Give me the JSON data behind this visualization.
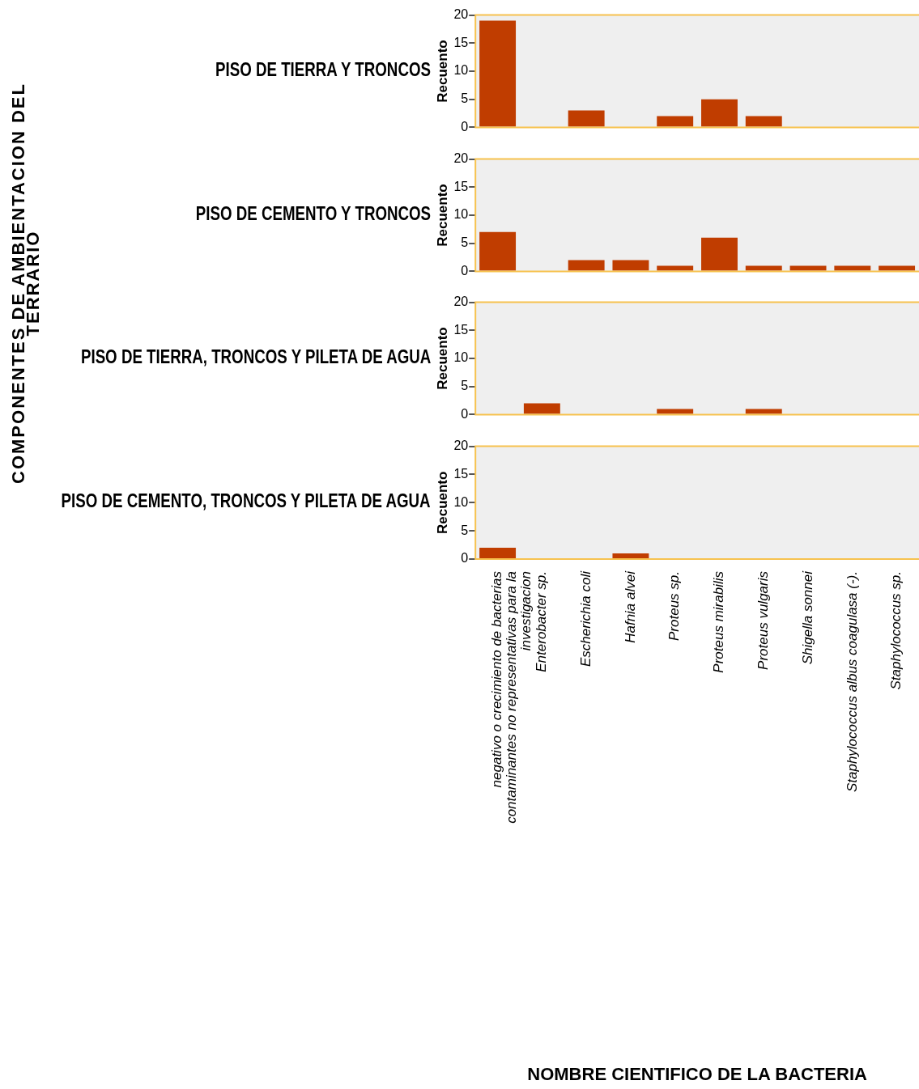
{
  "chart_data": [
    {
      "type": "bar",
      "title": "PISO DE TIERRA Y TRONCOS",
      "ylabel": "Recuento",
      "annotations": [
        "COMPONENTES DE AMBIENTACION DEL TERRARIO"
      ],
      "categories": [
        null,
        null,
        null,
        null,
        null,
        null,
        null,
        null,
        null,
        null
      ],
      "values": [
        19,
        null,
        3,
        null,
        2,
        5,
        2,
        null,
        null,
        null
      ],
      "color": "#c03d00",
      "ylim": [
        0,
        20
      ],
      "yticks": [
        0,
        5,
        10,
        15,
        20
      ],
      "grid": false,
      "legend": false,
      "tick_labels": "y"
    },
    {
      "type": "bar",
      "title": "PISO DE CEMENTO Y TRONCOS",
      "ylabel": "Recuento",
      "categories": [
        null,
        null,
        null,
        null,
        null,
        null,
        null,
        null,
        null,
        null
      ],
      "values": [
        7,
        0,
        2,
        2,
        1,
        6,
        1,
        1,
        1,
        1
      ],
      "color": "#c03d00",
      "ylim": [
        0,
        20
      ],
      "yticks": [
        0,
        5,
        10,
        15,
        20
      ],
      "grid": false,
      "legend": false,
      "tick_labels": "y"
    },
    {
      "type": "bar",
      "title": "PISO DE TIERRA, TRONCOS Y PILETA DE AGUA",
      "ylabel": "Recuento",
      "categories": [
        null,
        null,
        null,
        null,
        null,
        null,
        null,
        null,
        null,
        null
      ],
      "values": [
        0,
        2,
        0,
        0,
        1,
        0,
        1,
        0,
        0,
        0
      ],
      "color": "#c03d00",
      "ylim": [
        0,
        20
      ],
      "yticks": [
        0,
        5,
        10,
        15,
        20
      ],
      "grid": false,
      "legend": false,
      "tick_labels": "y"
    },
    {
      "type": "bar",
      "title": "PISO DE CEMENTO, TRONCOS Y PILETA DE AGUA",
      "ylabel": "Recuento",
      "xlabel": "NOMBRE CIENTIFICO DE LA BACTERIA",
      "categories": [
        "negativo o crecimiento de bacterias contaminantes no representativas para la investigacion",
        "Enterobacter sp.",
        "Escherichia coli",
        "Hafnia alvei",
        "Proteus sp.",
        "Proteus mirabilis",
        "Proteus vulgaris",
        "Shigella sonnei",
        "Staphylococcus albus coagulasa (-).",
        "Staphylococcus sp."
      ],
      "values": [
        2,
        0,
        0,
        1,
        0,
        0,
        0,
        0,
        0,
        0
      ],
      "color": "#c03d00",
      "ylim": [
        0,
        20
      ],
      "yticks": [
        0,
        5,
        10,
        15,
        20
      ],
      "grid": false,
      "legend": false
    }
  ]
}
